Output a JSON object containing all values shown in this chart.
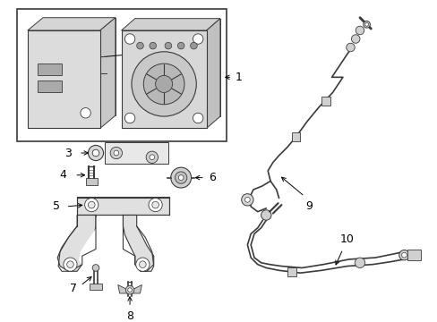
{
  "bg_color": "#ffffff",
  "line_color": "#3a3a3a",
  "text_color": "#000000",
  "fig_width": 4.89,
  "fig_height": 3.6,
  "dpi": 100
}
